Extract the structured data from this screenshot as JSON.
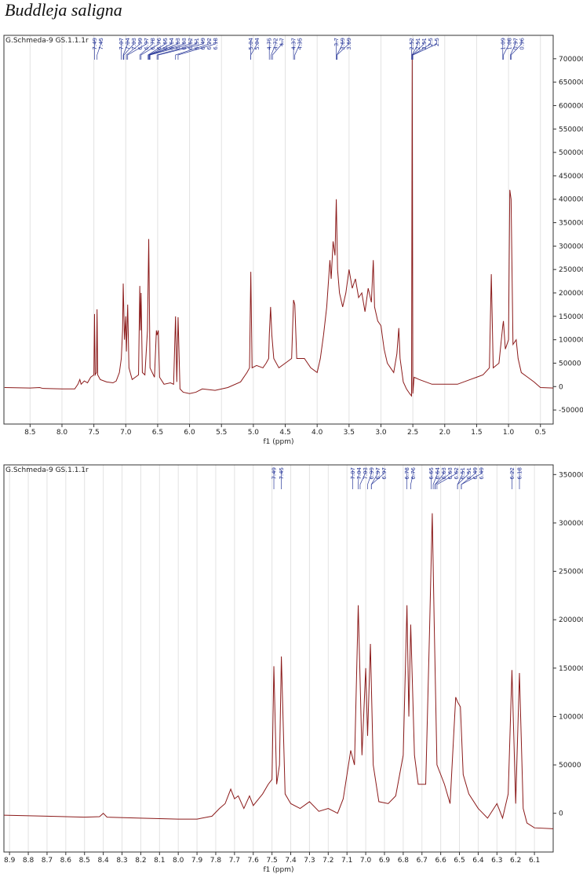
{
  "title": "Buddleja saligna",
  "chart_data": [
    {
      "type": "line",
      "label": "G.Schmeda-9 GS.1.1.1r",
      "x_label": "f1 (ppm)",
      "color": "#8b1a1a",
      "peak_color": "#2b3a9a",
      "grid": true,
      "xlim": [
        8.91,
        0.3
      ],
      "ylim": [
        -80000,
        750000
      ],
      "xticks": [
        8.5,
        {
          "value": 8,
          "label": "8.0"
        },
        7.5,
        {
          "value": 7,
          "label": "7.0"
        },
        6.5,
        {
          "value": 6,
          "label": "6.0"
        },
        5.5,
        {
          "value": 5,
          "label": "5.0"
        },
        4.5,
        {
          "value": 4,
          "label": "4.0"
        },
        3.5,
        {
          "value": 3,
          "label": "3.0"
        },
        2.5,
        {
          "value": 2,
          "label": "2.0"
        },
        1.5,
        {
          "value": 1,
          "label": "1.0"
        },
        0.5
      ],
      "yticks": [
        -50000,
        0,
        50000,
        100000,
        150000,
        200000,
        250000,
        300000,
        350000,
        400000,
        450000,
        500000,
        550000,
        600000,
        650000,
        700000
      ],
      "peaks": [
        7.49,
        7.45,
        7.07,
        7.04,
        7.03,
        6.99,
        6.97,
        6.78,
        6.76,
        6.65,
        6.64,
        6.63,
        6.63,
        6.62,
        6.51,
        6.49,
        6.22,
        6.18,
        5.04,
        5.04,
        4.75,
        4.72,
        4.7,
        4.37,
        4.35,
        3.7,
        3.69,
        3.69,
        2.52,
        2.51,
        2.51,
        2.5,
        2.5,
        1.09,
        1.08,
        0.97,
        0.96
      ],
      "x": [
        8.9,
        8.5,
        8.35,
        8.3,
        8.0,
        7.8,
        7.75,
        7.72,
        7.7,
        7.65,
        7.6,
        7.55,
        7.5,
        7.49,
        7.48,
        7.46,
        7.45,
        7.44,
        7.4,
        7.3,
        7.2,
        7.15,
        7.1,
        7.07,
        7.05,
        7.04,
        7.02,
        7.0,
        6.99,
        6.97,
        6.95,
        6.9,
        6.85,
        6.8,
        6.78,
        6.77,
        6.76,
        6.74,
        6.7,
        6.66,
        6.64,
        6.63,
        6.62,
        6.55,
        6.52,
        6.51,
        6.49,
        6.47,
        6.4,
        6.3,
        6.25,
        6.22,
        6.2,
        6.18,
        6.15,
        6.1,
        6.0,
        5.9,
        5.8,
        5.6,
        5.4,
        5.2,
        5.1,
        5.06,
        5.04,
        5.02,
        4.95,
        4.85,
        4.8,
        4.76,
        4.75,
        4.73,
        4.71,
        4.68,
        4.6,
        4.5,
        4.4,
        4.37,
        4.35,
        4.32,
        4.2,
        4.1,
        4.0,
        3.95,
        3.9,
        3.85,
        3.8,
        3.78,
        3.75,
        3.72,
        3.7,
        3.68,
        3.65,
        3.6,
        3.55,
        3.5,
        3.45,
        3.4,
        3.35,
        3.3,
        3.25,
        3.2,
        3.15,
        3.12,
        3.1,
        3.05,
        3.0,
        2.95,
        2.9,
        2.85,
        2.8,
        2.75,
        2.72,
        2.7,
        2.65,
        2.6,
        2.55,
        2.52,
        2.51,
        2.5,
        2.48,
        2.4,
        2.3,
        2.2,
        2.0,
        1.8,
        1.6,
        1.5,
        1.4,
        1.3,
        1.27,
        1.24,
        1.15,
        1.09,
        1.08,
        1.05,
        1.0,
        0.98,
        0.96,
        0.93,
        0.88,
        0.85,
        0.8,
        0.7,
        0.6,
        0.5,
        0.3
      ],
      "values": [
        -2000,
        -3000,
        -2000,
        -4000,
        -5000,
        -5000,
        5000,
        15000,
        5000,
        12000,
        8000,
        20000,
        25000,
        155000,
        25000,
        30000,
        165000,
        25000,
        15000,
        10000,
        8000,
        12000,
        30000,
        60000,
        120000,
        220000,
        100000,
        150000,
        75000,
        175000,
        40000,
        15000,
        20000,
        25000,
        215000,
        120000,
        200000,
        30000,
        25000,
        120000,
        315000,
        180000,
        40000,
        20000,
        120000,
        110000,
        120000,
        20000,
        5000,
        8000,
        5000,
        150000,
        10000,
        148000,
        -5000,
        -12000,
        -15000,
        -12000,
        -5000,
        -8000,
        -2000,
        10000,
        30000,
        40000,
        245000,
        40000,
        45000,
        40000,
        50000,
        60000,
        110000,
        170000,
        110000,
        60000,
        40000,
        50000,
        60000,
        185000,
        175000,
        60000,
        60000,
        40000,
        30000,
        60000,
        110000,
        170000,
        270000,
        230000,
        310000,
        280000,
        400000,
        250000,
        200000,
        170000,
        200000,
        250000,
        210000,
        230000,
        190000,
        200000,
        160000,
        210000,
        180000,
        270000,
        170000,
        140000,
        130000,
        80000,
        50000,
        40000,
        30000,
        70000,
        125000,
        60000,
        10000,
        -5000,
        -15000,
        -20000,
        710000,
        -15000,
        20000,
        15000,
        10000,
        5000,
        5000,
        5000,
        15000,
        20000,
        25000,
        40000,
        240000,
        40000,
        50000,
        130000,
        140000,
        80000,
        100000,
        420000,
        400000,
        90000,
        100000,
        60000,
        30000,
        20000,
        10000,
        -2000,
        -3000
      ]
    },
    {
      "type": "line",
      "label": "G.Schmeda-9 GS.1.1.1r",
      "x_label": "f1 (ppm)",
      "color": "#8b1a1a",
      "peak_color": "#2b3a9a",
      "grid": true,
      "xlim": [
        8.93,
        6.0
      ],
      "ylim": [
        -40000,
        360000
      ],
      "xticks": [
        8.9,
        8.8,
        8.7,
        8.6,
        8.5,
        8.4,
        8.3,
        8.2,
        8.1,
        {
          "value": 8,
          "label": "8.0"
        },
        7.9,
        7.8,
        7.7,
        7.6,
        7.5,
        7.4,
        7.3,
        7.2,
        7.1,
        {
          "value": 7,
          "label": "7.0"
        },
        6.9,
        6.8,
        6.7,
        6.6,
        6.5,
        6.4,
        6.3,
        6.2,
        6.1
      ],
      "yticks": [
        0,
        50000,
        100000,
        150000,
        200000,
        250000,
        300000,
        350000
      ],
      "peaks": [
        7.49,
        7.45,
        7.07,
        7.04,
        7.03,
        6.99,
        6.97,
        6.97,
        6.78,
        6.76,
        6.65,
        6.64,
        6.63,
        6.63,
        6.62,
        6.51,
        6.51,
        6.49,
        6.49,
        6.22,
        6.18
      ],
      "x": [
        8.93,
        8.7,
        8.5,
        8.42,
        8.4,
        8.38,
        8.2,
        8.0,
        7.9,
        7.82,
        7.78,
        7.75,
        7.72,
        7.7,
        7.68,
        7.65,
        7.62,
        7.6,
        7.55,
        7.52,
        7.5,
        7.49,
        7.475,
        7.46,
        7.45,
        7.43,
        7.4,
        7.35,
        7.3,
        7.25,
        7.2,
        7.15,
        7.12,
        7.08,
        7.06,
        7.04,
        7.02,
        7.0,
        6.99,
        6.975,
        6.96,
        6.93,
        6.88,
        6.84,
        6.8,
        6.78,
        6.77,
        6.76,
        6.74,
        6.72,
        6.68,
        6.66,
        6.645,
        6.635,
        6.62,
        6.58,
        6.55,
        6.52,
        6.51,
        6.495,
        6.48,
        6.45,
        6.4,
        6.35,
        6.3,
        6.27,
        6.24,
        6.22,
        6.2,
        6.18,
        6.16,
        6.14,
        6.1,
        6.0
      ],
      "values": [
        -2000,
        -3000,
        -4000,
        -3500,
        0,
        -4000,
        -5000,
        -6000,
        -6000,
        -3000,
        5000,
        10000,
        25000,
        15000,
        18000,
        5000,
        18000,
        8000,
        20000,
        30000,
        35000,
        152000,
        30000,
        50000,
        162000,
        20000,
        10000,
        5000,
        12000,
        2000,
        5000,
        0,
        15000,
        65000,
        50000,
        215000,
        60000,
        150000,
        80000,
        175000,
        50000,
        12000,
        10000,
        18000,
        60000,
        215000,
        100000,
        195000,
        60000,
        30000,
        30000,
        185000,
        310000,
        200000,
        50000,
        30000,
        10000,
        120000,
        115000,
        110000,
        40000,
        20000,
        5000,
        -5000,
        10000,
        -5000,
        20000,
        148000,
        10000,
        145000,
        5000,
        -10000,
        -15000,
        -16000
      ]
    }
  ]
}
